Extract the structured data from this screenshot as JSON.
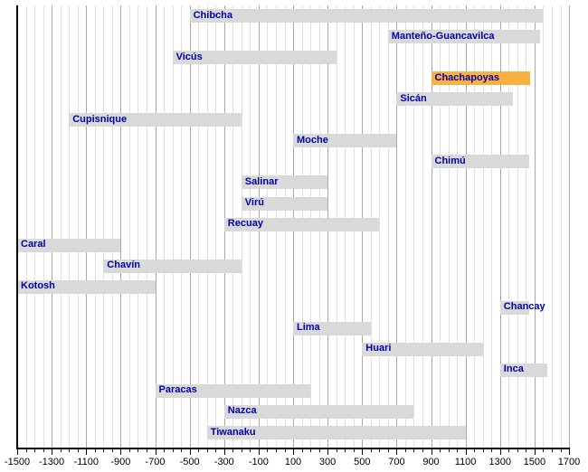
{
  "chart_data": {
    "type": "bar",
    "variant": "horizontal-timeline-gantt",
    "title": "",
    "xlabel": "",
    "ylabel": "",
    "grid": true,
    "legend": false,
    "x_axis": {
      "min": -1500,
      "max": 1700,
      "major_tick_step": 200,
      "minor_tick_step": 50,
      "tick_labels": [
        "-1500",
        "-1300",
        "-1100",
        "-900",
        "-700",
        "-500",
        "-300",
        "-100",
        "100",
        "300",
        "500",
        "700",
        "900",
        "1100",
        "1300",
        "1500",
        "1700"
      ]
    },
    "series": [
      {
        "name": "Chibcha",
        "start": -500,
        "end": 1550,
        "highlight": false
      },
      {
        "name": "Manteño-Guancavilca",
        "start": 650,
        "end": 1534,
        "highlight": false
      },
      {
        "name": "Vicús",
        "start": -600,
        "end": 350,
        "highlight": false
      },
      {
        "name": "Chachapoyas",
        "start": 900,
        "end": 1475,
        "highlight": true
      },
      {
        "name": "Sicán",
        "start": 700,
        "end": 1375,
        "highlight": false
      },
      {
        "name": "Cupisnique",
        "start": -1200,
        "end": -200,
        "highlight": false
      },
      {
        "name": "Moche",
        "start": 100,
        "end": 700,
        "highlight": false
      },
      {
        "name": "Chimú",
        "start": 900,
        "end": 1470,
        "highlight": false
      },
      {
        "name": "Salinar",
        "start": -200,
        "end": 300,
        "highlight": false
      },
      {
        "name": "Virú",
        "start": -200,
        "end": 300,
        "highlight": false
      },
      {
        "name": "Recuay",
        "start": -300,
        "end": 600,
        "highlight": false
      },
      {
        "name": "Caral",
        "start": -1500,
        "end": -900,
        "highlight": false
      },
      {
        "name": "Chavín",
        "start": -1000,
        "end": -200,
        "highlight": false
      },
      {
        "name": "Kotosh",
        "start": -1500,
        "end": -700,
        "highlight": false
      },
      {
        "name": "Chancay",
        "start": 1300,
        "end": 1470,
        "highlight": false
      },
      {
        "name": "Lima",
        "start": 100,
        "end": 550,
        "highlight": false
      },
      {
        "name": "Huari",
        "start": 500,
        "end": 1200,
        "highlight": false
      },
      {
        "name": "Inca",
        "start": 1300,
        "end": 1572,
        "highlight": false
      },
      {
        "name": "Paracas",
        "start": -700,
        "end": 200,
        "highlight": false
      },
      {
        "name": "Nazca",
        "start": -300,
        "end": 800,
        "highlight": false
      },
      {
        "name": "Tiwanaku",
        "start": -400,
        "end": 1100,
        "highlight": false
      }
    ],
    "colors": {
      "bar": "#d9d9d9",
      "bar_highlight": "#fbb042",
      "bar_label": "#0000a8",
      "grid_minor": "#e0e0e0",
      "grid_major": "#a8a8a8",
      "axis": "#000000",
      "tick_label": "#000000",
      "background": "#ffffff"
    }
  }
}
